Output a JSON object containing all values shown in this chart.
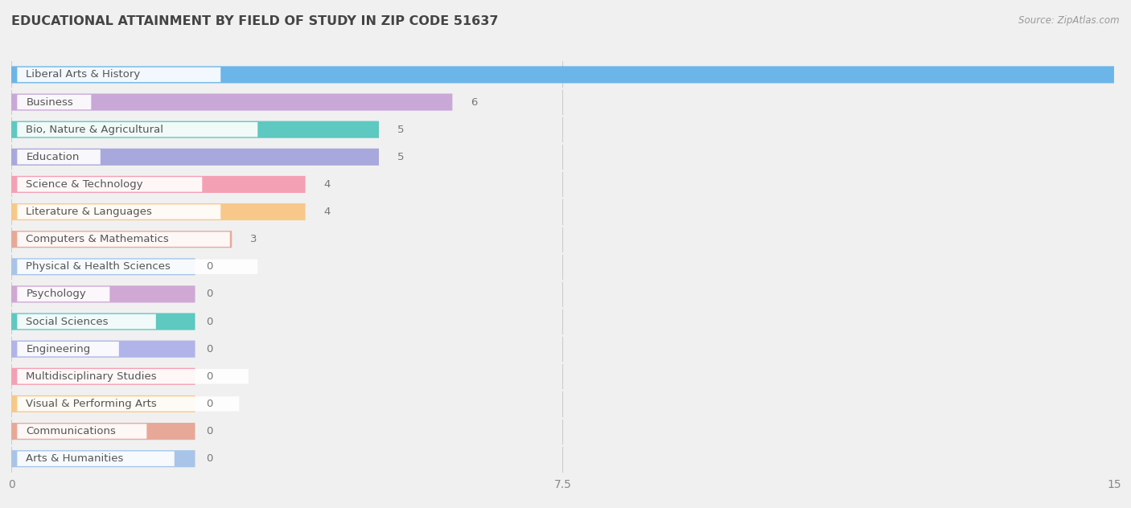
{
  "title": "EDUCATIONAL ATTAINMENT BY FIELD OF STUDY IN ZIP CODE 51637",
  "source": "Source: ZipAtlas.com",
  "categories": [
    "Liberal Arts & History",
    "Business",
    "Bio, Nature & Agricultural",
    "Education",
    "Science & Technology",
    "Literature & Languages",
    "Computers & Mathematics",
    "Physical & Health Sciences",
    "Psychology",
    "Social Sciences",
    "Engineering",
    "Multidisciplinary Studies",
    "Visual & Performing Arts",
    "Communications",
    "Arts & Humanities"
  ],
  "values": [
    15,
    6,
    5,
    5,
    4,
    4,
    3,
    0,
    0,
    0,
    0,
    0,
    0,
    0,
    0
  ],
  "bar_colors": [
    "#6bb5e8",
    "#c9a8d8",
    "#5dc9c0",
    "#a8a8dc",
    "#f4a0b4",
    "#f7c88a",
    "#e8a898",
    "#a8c4e8",
    "#d0a8d4",
    "#5dc9c0",
    "#b0b4e8",
    "#f4a0b4",
    "#f7c88a",
    "#e8a898",
    "#a8c4e8"
  ],
  "xlim": [
    0,
    15
  ],
  "xticks": [
    0,
    7.5,
    15
  ],
  "bg_color": "#f0f0f0",
  "row_bg_color": "#ffffff",
  "label_bg": "#ffffff",
  "title_color": "#444444",
  "label_color": "#555555",
  "value_color": "#777777",
  "title_fontsize": 11.5,
  "tick_fontsize": 10,
  "label_fontsize": 9.5,
  "value_fontsize": 9.5,
  "zero_bar_width": 2.5
}
